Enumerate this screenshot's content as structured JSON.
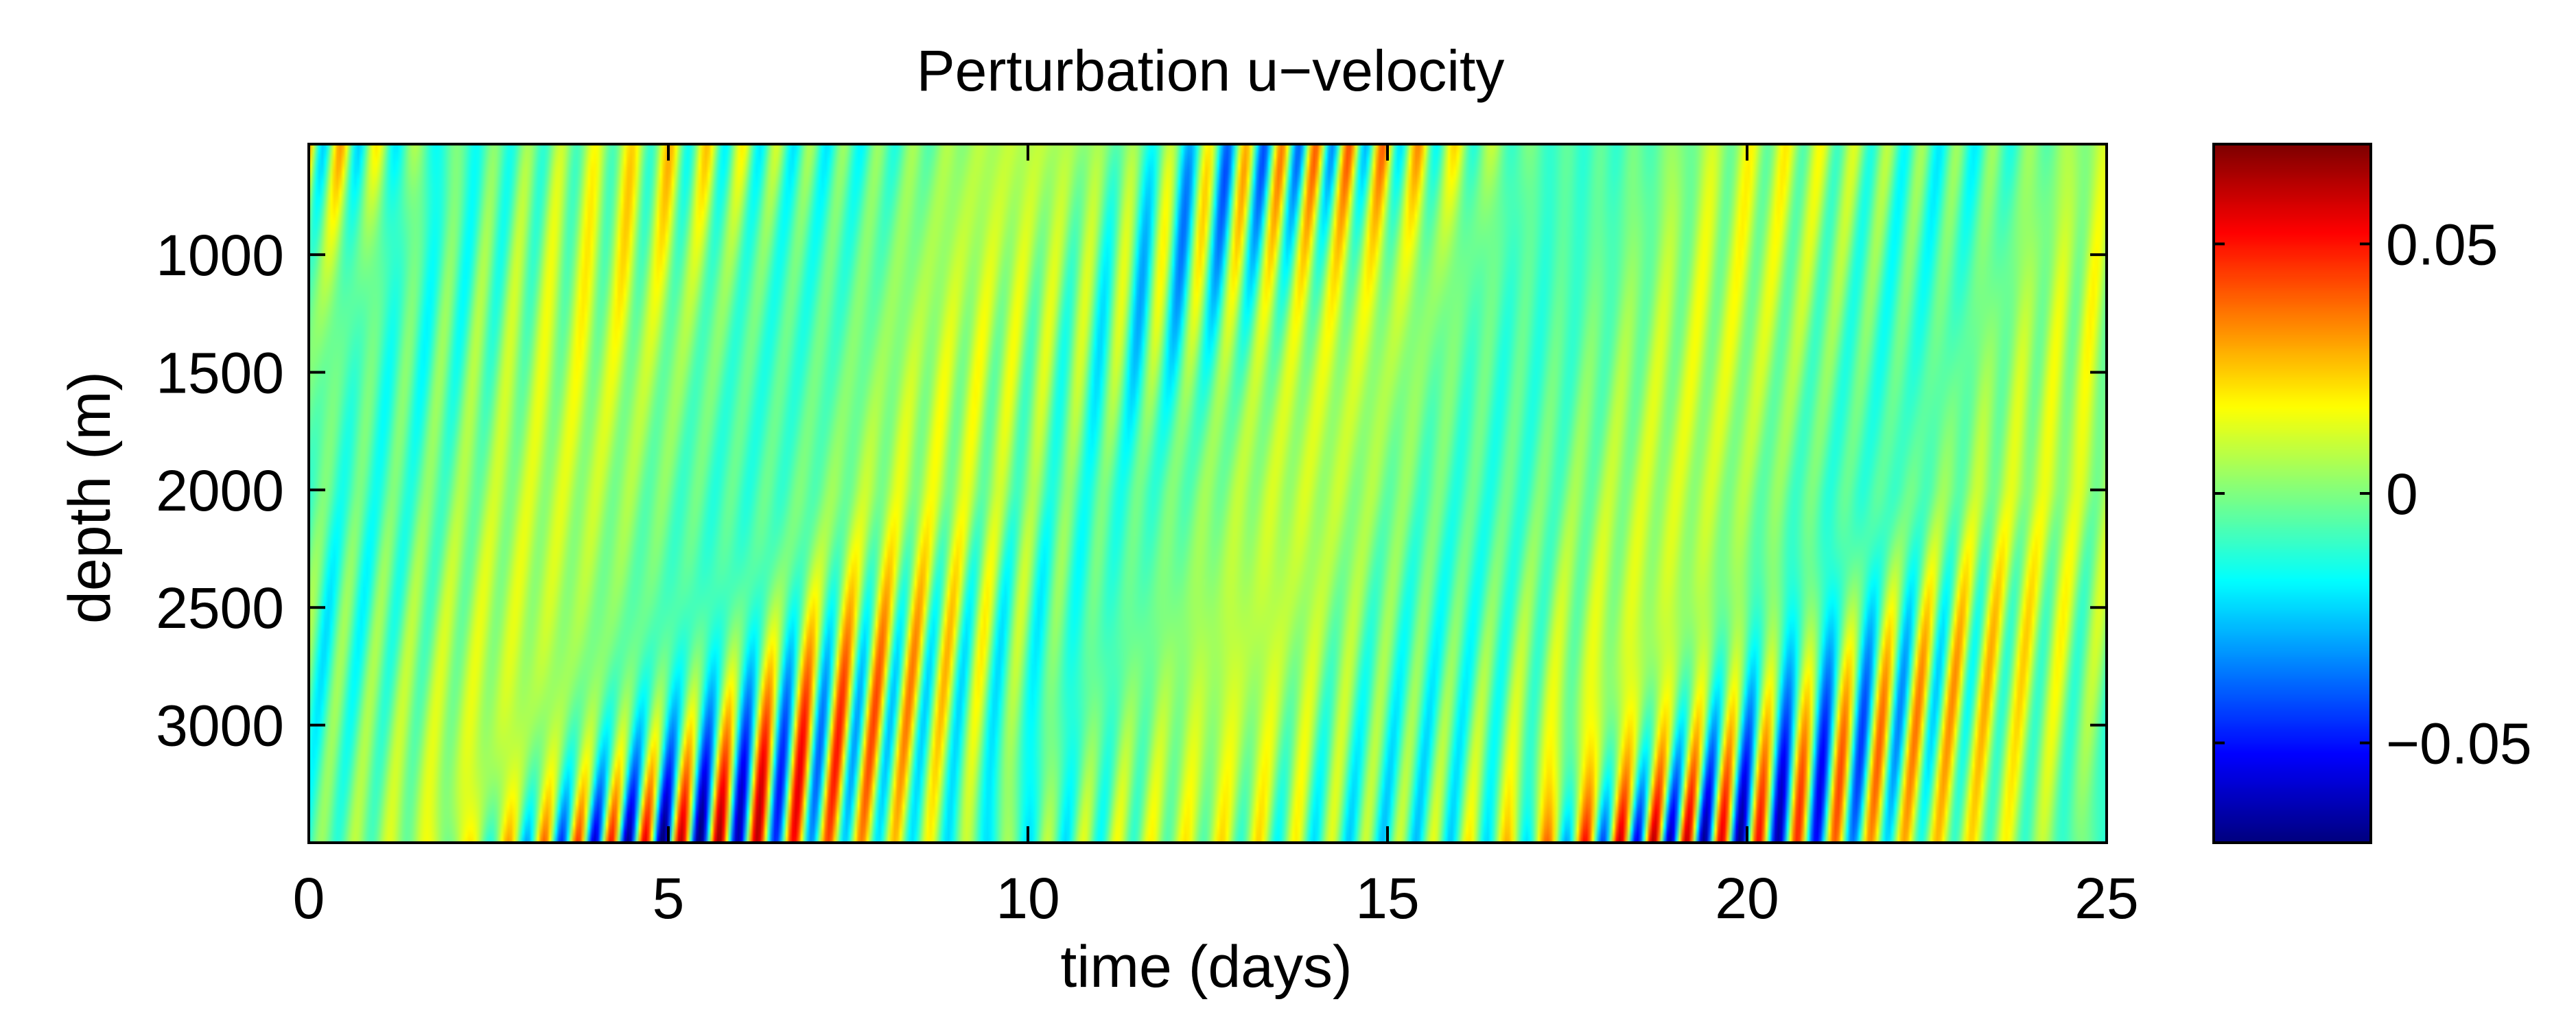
{
  "chart_data": {
    "type": "heatmap",
    "title": "Perturbation u−velocity",
    "xlabel": "time (days)",
    "ylabel": "depth (m)",
    "xlim": [
      0,
      25
    ],
    "ylim": [
      3500,
      530
    ],
    "x_ticks": [
      {
        "value": 0,
        "label": "0"
      },
      {
        "value": 5,
        "label": "5"
      },
      {
        "value": 10,
        "label": "10"
      },
      {
        "value": 15,
        "label": "15"
      },
      {
        "value": 20,
        "label": "20"
      },
      {
        "value": 25,
        "label": "25"
      }
    ],
    "y_ticks": [
      {
        "value": 1000,
        "label": "1000"
      },
      {
        "value": 1500,
        "label": "1500"
      },
      {
        "value": 2000,
        "label": "2000"
      },
      {
        "value": 2500,
        "label": "2500"
      },
      {
        "value": 3000,
        "label": "3000"
      }
    ],
    "colorbar": {
      "colormap": "jet",
      "clim": [
        -0.07,
        0.07
      ],
      "ticks": [
        {
          "value": 0.05,
          "label": "0.05"
        },
        {
          "value": 0,
          "label": "0"
        },
        {
          "value": -0.05,
          "label": "−0.05"
        }
      ]
    },
    "field_description_values": {
      "period_days": 0.5,
      "max_amplitude_near_bottom": 0.065,
      "max_amplitude_near_top": 0.03,
      "min_amplitude_depth_m": 2000
    }
  },
  "colors": {
    "background": "#ffffff",
    "axes": "#000000"
  }
}
